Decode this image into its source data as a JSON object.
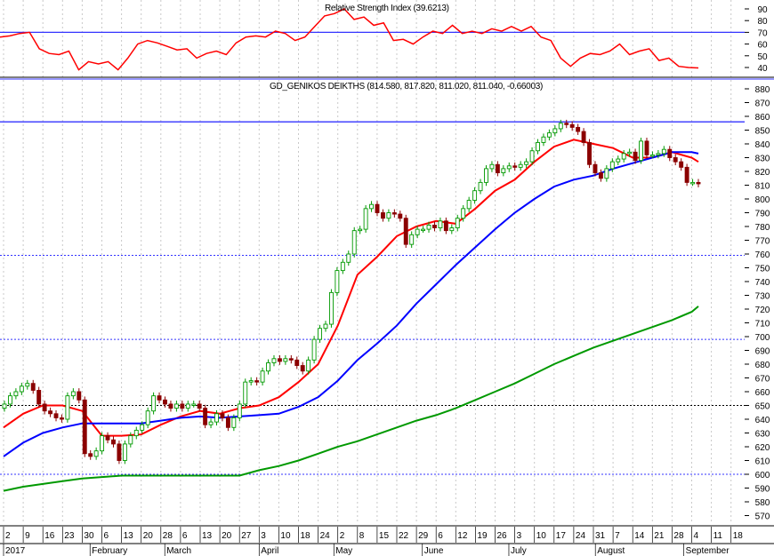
{
  "chart_data": [
    {
      "type": "line",
      "title": "Relative Strength Index (39.6213)",
      "ylim": [
        35,
        95
      ],
      "yticks": [
        90,
        80,
        70,
        60,
        50,
        40
      ],
      "reference_lines": [
        {
          "value": 70,
          "color": "#3333ff",
          "style": "solid"
        }
      ],
      "series": [
        {
          "color": "#ff0000",
          "values": [
            66,
            67,
            69,
            70,
            56,
            52,
            51,
            54,
            38,
            45,
            43,
            45,
            38,
            48,
            60,
            63,
            61,
            58,
            55,
            56,
            48,
            52,
            54,
            51,
            61,
            66,
            67,
            66,
            71,
            69,
            63,
            66,
            75,
            84,
            86,
            90,
            81,
            83,
            76,
            78,
            63,
            64,
            60,
            66,
            71,
            69,
            76,
            69,
            71,
            69,
            73,
            71,
            75,
            71,
            75,
            66,
            63,
            48,
            41,
            48,
            52,
            51,
            54,
            60,
            51,
            54,
            56,
            46,
            48,
            41,
            40,
            39.6
          ]
        }
      ]
    },
    {
      "type": "candlestick",
      "title": "GD_GENIKOS DEIKTHS (814.580, 817.820, 811.020, 811.040, -0.66003)",
      "ylim": [
        562,
        886
      ],
      "yticks": [
        880,
        870,
        860,
        850,
        840,
        830,
        820,
        810,
        800,
        790,
        780,
        770,
        760,
        750,
        740,
        730,
        720,
        710,
        700,
        690,
        680,
        670,
        660,
        650,
        640,
        630,
        620,
        610,
        600,
        590,
        580,
        570
      ],
      "grid": true,
      "reference_lines": [
        {
          "value": 856,
          "color": "#3333ff",
          "style": "solid"
        },
        {
          "value": 759,
          "color": "#3333ff",
          "style": "dotted"
        },
        {
          "value": 698,
          "color": "#3333ff",
          "style": "dotted"
        },
        {
          "value": 650,
          "color": "#000000",
          "style": "dotted"
        },
        {
          "value": 600,
          "color": "#3333ff",
          "style": "dotted"
        }
      ],
      "closes": [
        651,
        657,
        660,
        664,
        666,
        661,
        651,
        646,
        644,
        641,
        640,
        657,
        660,
        654,
        615,
        613,
        617,
        628,
        625,
        622,
        610,
        622,
        628,
        632,
        636,
        646,
        657,
        654,
        651,
        648,
        651,
        648,
        651,
        651,
        648,
        636,
        638,
        644,
        641,
        634,
        641,
        651,
        667,
        668,
        667,
        675,
        681,
        684,
        682,
        684,
        683,
        679,
        675,
        683,
        698,
        706,
        709,
        732,
        748,
        754,
        760,
        777,
        778,
        793,
        796,
        790,
        786,
        790,
        789,
        786,
        767,
        774,
        778,
        778,
        781,
        779,
        784,
        777,
        779,
        786,
        793,
        799,
        806,
        812,
        822,
        825,
        819,
        822,
        824,
        823,
        825,
        827,
        835,
        841,
        845,
        848,
        851,
        855,
        854,
        852,
        849,
        841,
        825,
        819,
        815,
        822,
        827,
        829,
        833,
        834,
        828,
        842,
        832,
        832,
        833,
        836,
        830,
        827,
        823,
        812,
        812,
        811
      ],
      "moving_averages": [
        {
          "color": "#ff0000",
          "weekly_values": [
            634,
            644,
            650,
            650,
            646,
            628,
            628,
            629,
            636,
            642,
            646,
            644,
            648,
            650,
            656,
            667,
            680,
            708,
            745,
            758,
            773,
            780,
            784,
            782,
            793,
            806,
            814,
            827,
            838,
            843,
            840,
            837,
            830,
            830,
            834,
            830,
            827
          ]
        },
        {
          "color": "#0000ff",
          "weekly_values": [
            613,
            623,
            630,
            634,
            637,
            637,
            637,
            637,
            639,
            641,
            642,
            641,
            642,
            643,
            644,
            649,
            656,
            668,
            683,
            695,
            708,
            724,
            738,
            752,
            765,
            778,
            790,
            800,
            809,
            814,
            817,
            822,
            826,
            830,
            834,
            834,
            833
          ]
        },
        {
          "color": "#009900",
          "weekly_values": [
            588,
            591,
            593,
            595,
            597,
            598,
            599,
            599,
            599,
            599,
            599,
            599,
            599,
            603,
            606,
            610,
            615,
            620,
            624,
            629,
            634,
            639,
            643,
            648,
            654,
            660,
            666,
            673,
            680,
            686,
            692,
            697,
            702,
            707,
            712,
            718,
            722
          ]
        }
      ],
      "candle_colors": {
        "up": "#009900",
        "down": "#8b0000"
      }
    }
  ],
  "x_axis": {
    "day_ticks": [
      "2",
      "9",
      "16",
      "23",
      "30",
      "6",
      "13",
      "20",
      "28",
      "6",
      "13",
      "20",
      "27",
      "3",
      "10",
      "18",
      "24",
      "2",
      "8",
      "15",
      "22",
      "29",
      "6",
      "12",
      "19",
      "26",
      "3",
      "10",
      "17",
      "24",
      "31",
      "7",
      "14",
      "21",
      "28",
      "4",
      "11",
      "18"
    ],
    "months": [
      {
        "label": "2017",
        "week": 0
      },
      {
        "label": "February",
        "week": 4.4
      },
      {
        "label": "March",
        "week": 8.2
      },
      {
        "label": "April",
        "week": 13
      },
      {
        "label": "May",
        "week": 16.8
      },
      {
        "label": "June",
        "week": 21.3
      },
      {
        "label": "July",
        "week": 25.7
      },
      {
        "label": "August",
        "week": 30.1
      },
      {
        "label": "September",
        "week": 34.6
      }
    ]
  }
}
